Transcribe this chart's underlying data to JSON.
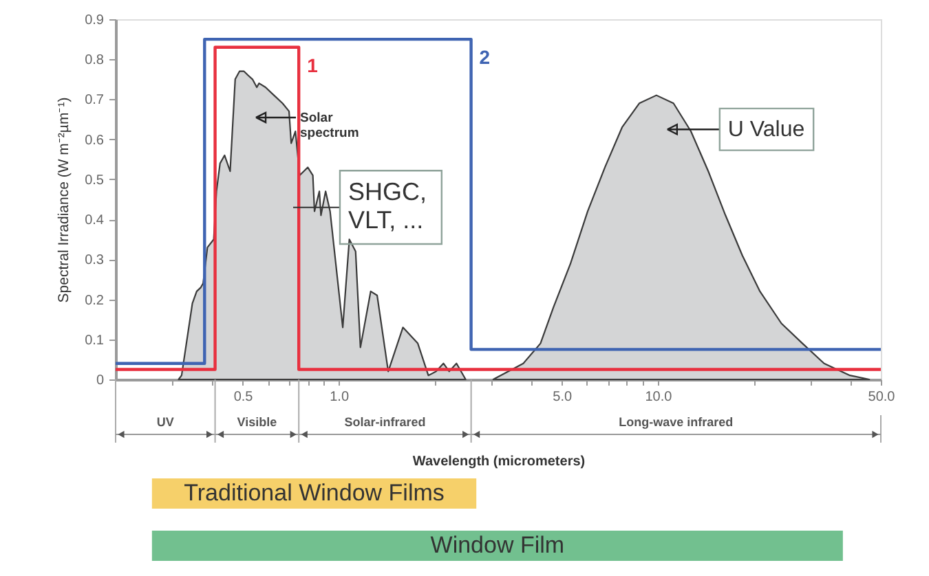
{
  "chart_data": {
    "type": "area",
    "xlabel": "Wavelength (micrometers)",
    "ylabel": "Spectral Irradiance (W m⁻²µm⁻¹)",
    "log": "x",
    "xlim": [
      0.2,
      50
    ],
    "xticks": [
      {
        "value": 0.3,
        "label": null
      },
      {
        "value": 0.4,
        "label": null
      },
      0.5,
      {
        "value": 0.6,
        "label": null
      },
      {
        "value": 0.7,
        "label": null
      },
      {
        "value": 0.8,
        "label": null
      },
      {
        "value": 0.9,
        "label": null
      },
      {
        "value": 1,
        "label": "1.0"
      },
      {
        "value": 2,
        "label": null
      },
      {
        "value": 3,
        "label": null
      },
      {
        "value": 4,
        "label": null
      },
      {
        "value": 5,
        "label": "5.0"
      },
      {
        "value": 6,
        "label": null
      },
      {
        "value": 7,
        "label": null
      },
      {
        "value": 8,
        "label": null
      },
      {
        "value": 9,
        "label": null
      },
      {
        "value": 10,
        "label": "10.0"
      },
      {
        "value": 20,
        "label": null
      },
      {
        "value": 30,
        "label": null
      },
      {
        "value": 40,
        "label": null
      },
      {
        "value": 50,
        "label": "50.0"
      }
    ],
    "ylim": [
      0,
      0.9
    ],
    "yticks": [
      0,
      0.1,
      0.2,
      0.3,
      0.4,
      0.5,
      0.6,
      0.7,
      0.8,
      0.9
    ],
    "grid": false,
    "legend": false,
    "series": [
      {
        "name": "Solar\nspectrum",
        "color": "#d4d5d6",
        "x": [
          0.315,
          0.322,
          0.348,
          0.359,
          0.37,
          0.376,
          0.388,
          0.406,
          0.414,
          0.425,
          0.439,
          0.457,
          0.474,
          0.489,
          0.505,
          0.52,
          0.537,
          0.554,
          0.563,
          0.59,
          0.627,
          0.667,
          0.699,
          0.71,
          0.732,
          0.755,
          0.8,
          0.83,
          0.84,
          0.87,
          0.88,
          0.91,
          0.94,
          1.03,
          1.08,
          1.13,
          1.17,
          1.26,
          1.32,
          1.43,
          1.59,
          1.77,
          1.91,
          2.02,
          2.13,
          2.22,
          2.34,
          2.5
        ],
        "values": [
          0,
          0.01,
          0.19,
          0.22,
          0.23,
          0.24,
          0.33,
          0.35,
          0.47,
          0.54,
          0.56,
          0.52,
          0.75,
          0.77,
          0.77,
          0.76,
          0.75,
          0.73,
          0.74,
          0.73,
          0.71,
          0.69,
          0.67,
          0.59,
          0.62,
          0.51,
          0.53,
          0.51,
          0.42,
          0.47,
          0.41,
          0.47,
          0.42,
          0.13,
          0.35,
          0.32,
          0.08,
          0.22,
          0.21,
          0.02,
          0.13,
          0.09,
          0.01,
          0.02,
          0.04,
          0.02,
          0.04,
          0
        ]
      },
      {
        "name": "U Value",
        "color": "#d4d5d6",
        "x": [
          3.05,
          3.79,
          4.29,
          4.71,
          5.33,
          6.03,
          6.83,
          7.73,
          8.75,
          9.9,
          11.2,
          12.7,
          14.4,
          16.3,
          18.4,
          20.9,
          24.4,
          28.4,
          33.2,
          40,
          46
        ],
        "values": [
          0,
          0.04,
          0.09,
          0.18,
          0.29,
          0.42,
          0.53,
          0.63,
          0.69,
          0.71,
          0.69,
          0.62,
          0.52,
          0.41,
          0.31,
          0.22,
          0.14,
          0.09,
          0.04,
          0.01,
          0
        ]
      },
      {
        "type": "step",
        "name": "1",
        "color": "#e8303f",
        "x": [
          0.2,
          0.41,
          0.75,
          50
        ],
        "values": [
          0.025,
          0.83,
          0.025,
          0.025
        ]
      },
      {
        "type": "step",
        "name": "2",
        "color": "#3f64b2",
        "x": [
          0.2,
          0.38,
          2.6,
          50
        ],
        "values": [
          0.04,
          0.85,
          0.075,
          0.075
        ]
      }
    ],
    "annotations": [
      {
        "text": "SHGC,\nVLT, ...",
        "x": 0.72,
        "y": 0.43
      },
      "UV",
      "Visible",
      "Solar-infrared",
      "Long-wave infrared",
      "Traditional Window Films",
      "Window Film"
    ]
  }
}
